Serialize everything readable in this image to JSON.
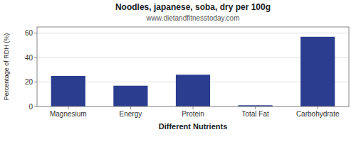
{
  "chart_data": {
    "type": "bar",
    "title": "Noodles, japanese, soba, dry per 100g",
    "subtitle": "www.dietandfitnesstoday.com",
    "xlabel": "Different Nutrients",
    "ylabel": "Percentage of RDH (%)",
    "categories": [
      "Magnesium",
      "Energy",
      "Protein",
      "Total Fat",
      "Carbohydrate"
    ],
    "values": [
      25,
      17,
      26,
      1,
      57
    ],
    "color": "#2b3d8f",
    "ylim": [
      0,
      65
    ],
    "yticks": [
      0,
      20,
      40,
      60
    ],
    "grid": true
  }
}
